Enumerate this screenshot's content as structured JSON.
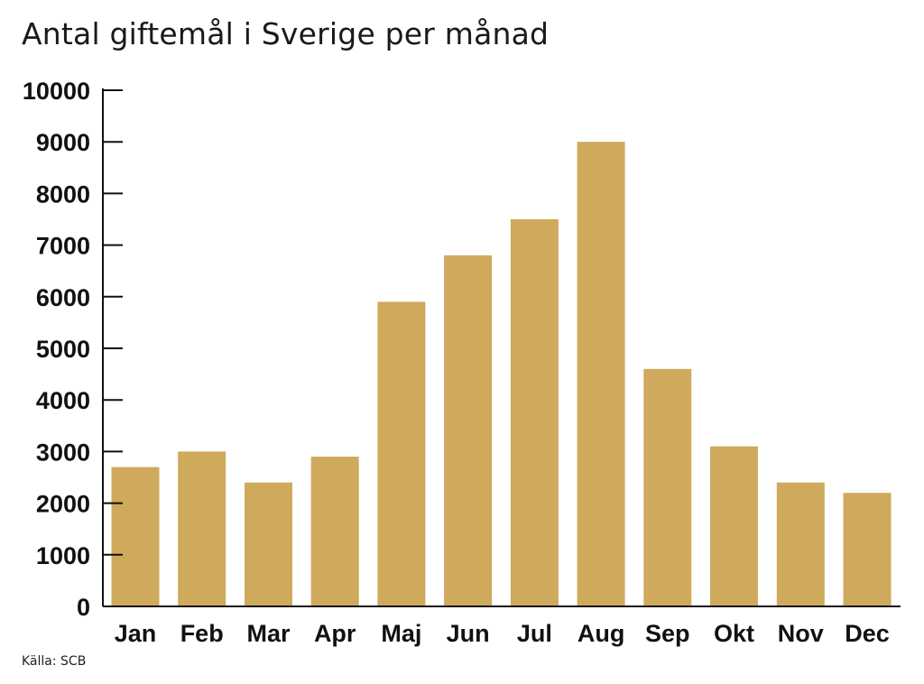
{
  "chart_data": {
    "type": "bar",
    "title": "Antal giftemål i Sverige per månad",
    "source": "Källa: SCB",
    "categories": [
      "Jan",
      "Feb",
      "Mar",
      "Apr",
      "Maj",
      "Jun",
      "Jul",
      "Aug",
      "Sep",
      "Okt",
      "Nov",
      "Dec"
    ],
    "values": [
      2700,
      3000,
      2400,
      2900,
      5900,
      6800,
      7500,
      9000,
      4600,
      3100,
      2400,
      2200
    ],
    "yticks": [
      "0",
      "1000",
      "2000",
      "3000",
      "4000",
      "5000",
      "6000",
      "7000",
      "8000",
      "9000",
      "10000"
    ],
    "ylim": [
      0,
      10000
    ],
    "xlabel": "",
    "ylabel": "",
    "grid": false,
    "legend": "none",
    "bar_color": "#cfa95c",
    "axis_color": "#111111"
  }
}
